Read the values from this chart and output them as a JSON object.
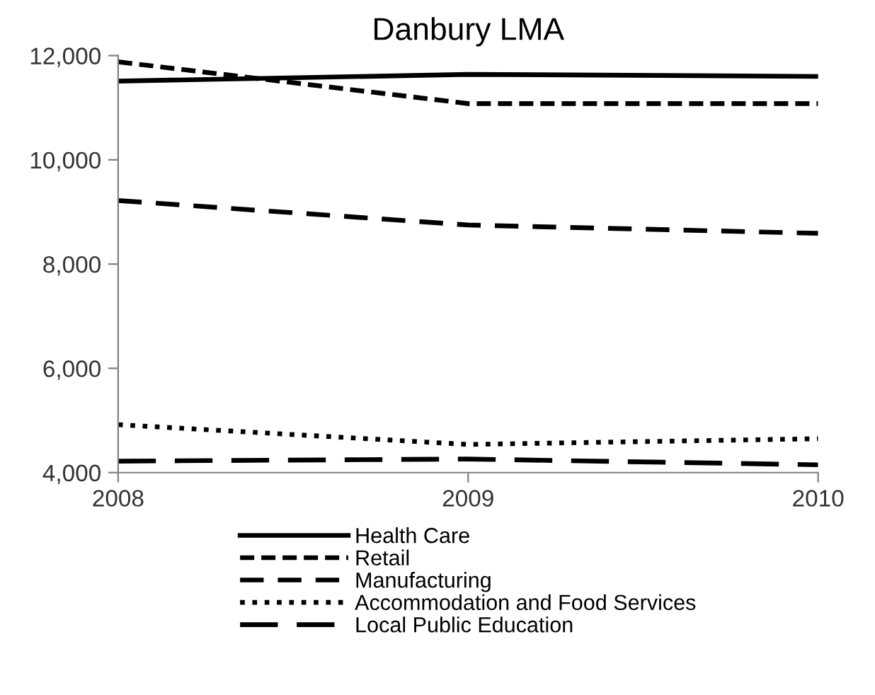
{
  "chart_data": {
    "type": "line",
    "title": "Danbury LMA",
    "x": [
      2008,
      2009,
      2010
    ],
    "series": [
      {
        "name": "Health Care",
        "color": "#000000",
        "line_style": "solid",
        "values": [
          11510,
          11640,
          11600
        ]
      },
      {
        "name": "Retail",
        "color": "#000000",
        "line_style": "dashed",
        "values": [
          11880,
          11080,
          11080
        ]
      },
      {
        "name": "Manufacturing",
        "color": "#000000",
        "line_style": "longdash",
        "values": [
          9220,
          8750,
          8590
        ]
      },
      {
        "name": "Accommodation and Food Services",
        "color": "#000000",
        "line_style": "dotted",
        "values": [
          4920,
          4540,
          4650
        ]
      },
      {
        "name": "Local Public Education",
        "color": "#000000",
        "line_style": "longdashgap",
        "values": [
          4220,
          4260,
          4150
        ]
      }
    ],
    "xlim": [
      2008,
      2010
    ],
    "xticks": [
      2008,
      2009,
      2010
    ],
    "ylim": [
      4000,
      12000
    ],
    "yticks": [
      {
        "value": 4000,
        "label": "4,000"
      },
      {
        "value": 6000,
        "label": "6,000"
      },
      {
        "value": 8000,
        "label": "8,000"
      },
      {
        "value": 10000,
        "label": "10,000"
      },
      {
        "value": 12000,
        "label": "12,000"
      }
    ],
    "grid": false,
    "legend": "bottom"
  }
}
